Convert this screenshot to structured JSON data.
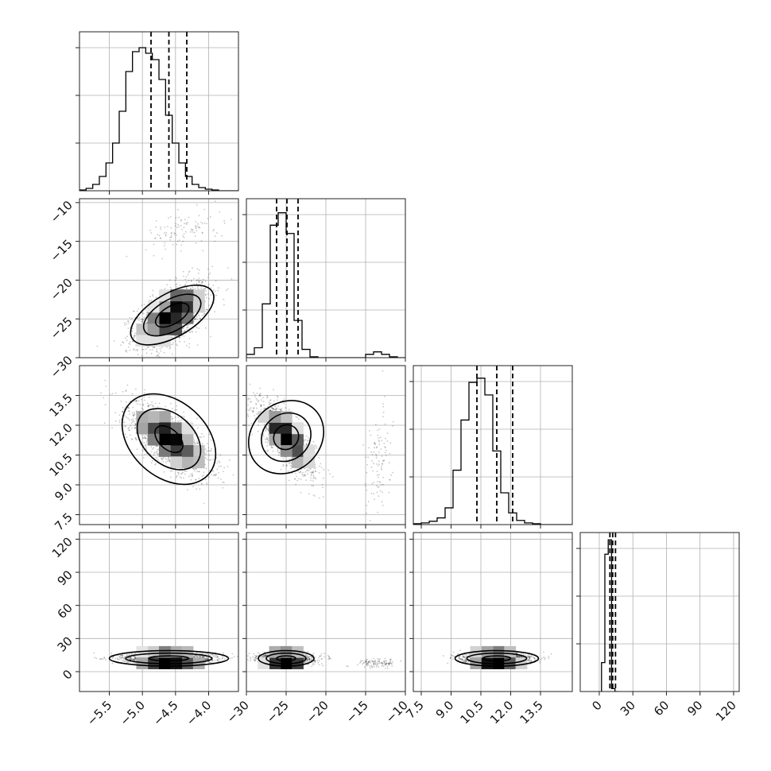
{
  "chart_data": {
    "type": "corner",
    "grid": true,
    "parameters": [
      {
        "range": [
          -5.95,
          -3.55
        ],
        "ticks": [
          "−5.5",
          "−5.0",
          "−4.5",
          "−4.0"
        ],
        "tick_values": [
          -5.5,
          -5.0,
          -4.5,
          -4.0
        ],
        "quantiles": [
          -4.87,
          -4.6,
          -4.33
        ],
        "hist": {
          "bin_width": 0.1,
          "start": -5.95,
          "counts": [
            1,
            3,
            8,
            18,
            35,
            60,
            100,
            150,
            175,
            180,
            173,
            165,
            140,
            95,
            60,
            35,
            18,
            8,
            4,
            2,
            1,
            0,
            0,
            0
          ],
          "ylim": [
            0,
            200
          ]
        }
      },
      {
        "range": [
          -30,
          -10
        ],
        "ticks": [
          "−30",
          "−25",
          "−20",
          "−15",
          "−10"
        ],
        "tick_values": [
          -30,
          -25,
          -20,
          -15,
          -10
        ],
        "quantiles": [
          -26.2,
          -24.9,
          -23.5
        ],
        "hist": {
          "bin_width": 1,
          "start": -30,
          "counts": [
            4,
            12,
            65,
            160,
            175,
            150,
            45,
            10,
            1,
            0,
            0,
            0,
            0,
            0,
            0,
            4,
            7,
            4,
            1,
            0
          ],
          "ylim": [
            0,
            192
          ]
        }
      },
      {
        "range": [
          7.1,
          15.1
        ],
        "ticks": [
          "7.5",
          "9.0",
          "10.5",
          "12.0",
          "13.5"
        ],
        "tick_values": [
          7.5,
          9.0,
          10.5,
          12.0,
          13.5
        ],
        "quantiles": [
          10.3,
          11.3,
          12.1
        ],
        "hist": {
          "bin_width": 0.4,
          "start": 7.1,
          "counts": [
            1,
            2,
            4,
            8,
            20,
            65,
            125,
            170,
            175,
            155,
            88,
            38,
            14,
            5,
            2,
            1,
            0,
            0,
            0,
            0
          ],
          "ylim": [
            0,
            190
          ]
        }
      },
      {
        "range": [
          -17,
          125
        ],
        "ticks": [
          "0",
          "30",
          "60",
          "90",
          "120"
        ],
        "tick_values": [
          0,
          30,
          60,
          90,
          120
        ],
        "quantiles": [
          9.5,
          12.0,
          14.5
        ],
        "hist": {
          "bin_width": 3,
          "start": 2,
          "counts": [
            40,
            190,
            210,
            4,
            0
          ],
          "ylim": [
            0,
            220
          ]
        }
      }
    ],
    "y_axes": [
      null,
      {
        "range": [
          -30,
          -9.5
        ],
        "ticks": [
          "−10",
          "−15",
          "−20",
          "−25",
          "−30"
        ],
        "tick_values": [
          -10,
          -15,
          -20,
          -25,
          -30
        ]
      },
      {
        "range": [
          7,
          15
        ],
        "ticks": [
          "13.5",
          "12.0",
          "10.5",
          "9.0",
          "7.5"
        ],
        "tick_values": [
          13.5,
          12.0,
          10.5,
          9.0,
          7.5
        ]
      },
      {
        "range": [
          -18,
          126
        ],
        "ticks": [
          "120",
          "90",
          "60",
          "30",
          "0"
        ],
        "tick_values": [
          120,
          90,
          60,
          30,
          0
        ]
      }
    ],
    "pairs": [
      {
        "row": 1,
        "col": 0,
        "clusters": [
          {
            "cx": -4.55,
            "cy": -24.5,
            "sx": 0.28,
            "sy": 2.2,
            "rho": 0.55,
            "n": 1500
          },
          {
            "cx": -4.35,
            "cy": -13.5,
            "sx": 0.3,
            "sy": 1.3,
            "rho": 0.3,
            "n": 110
          }
        ],
        "contours": [
          {
            "cx": -4.55,
            "cy": -24.5,
            "rx": 0.7,
            "ry": 2.8,
            "rot": 30
          },
          {
            "cx": -4.55,
            "cy": -24.5,
            "rx": 0.48,
            "ry": 2.0,
            "rot": 30
          },
          {
            "cx": -4.55,
            "cy": -24.5,
            "rx": 0.28,
            "ry": 1.15,
            "rot": 30
          }
        ]
      },
      {
        "row": 2,
        "col": 0,
        "clusters": [
          {
            "cx": -4.6,
            "cy": 11.3,
            "sx": 0.32,
            "sy": 0.9,
            "rho": -0.7,
            "n": 1500
          }
        ],
        "contours": [
          {
            "cx": -4.6,
            "cy": 11.3,
            "rx": 0.8,
            "ry": 1.9,
            "rot": -42
          },
          {
            "cx": -4.6,
            "cy": 11.3,
            "rx": 0.55,
            "ry": 1.25,
            "rot": -42
          },
          {
            "cx": -4.6,
            "cy": 11.3,
            "rx": 0.25,
            "ry": 0.5,
            "rot": -42
          }
        ]
      },
      {
        "row": 2,
        "col": 1,
        "clusters": [
          {
            "cx": -25.0,
            "cy": 11.4,
            "sx": 1.8,
            "sy": 0.9,
            "rho": -0.75,
            "n": 1400
          },
          {
            "cx": -13.5,
            "cy": 10.0,
            "sx": 0.9,
            "sy": 1.4,
            "rho": 0.2,
            "n": 110
          }
        ],
        "contours": [
          {
            "cx": -25.0,
            "cy": 11.4,
            "rx": 4.3,
            "ry": 2.0,
            "rot": -50
          },
          {
            "cx": -25.0,
            "cy": 11.4,
            "rx": 2.9,
            "ry": 1.3,
            "rot": -50
          },
          {
            "cx": -25.0,
            "cy": 11.4,
            "rx": 1.5,
            "ry": 0.65,
            "rot": -50
          }
        ]
      },
      {
        "row": 3,
        "col": 0,
        "clusters": [
          {
            "cx": -4.6,
            "cy": 12.0,
            "sx": 0.35,
            "sy": 2.3,
            "rho": 0.0,
            "n": 1500
          }
        ],
        "contours": [
          {
            "cx": -4.6,
            "cy": 12.0,
            "rx": 0.9,
            "ry": 7.0,
            "rot": 0
          },
          {
            "cx": -4.6,
            "cy": 12.0,
            "rx": 0.65,
            "ry": 4.8,
            "rot": 0
          },
          {
            "cx": -4.6,
            "cy": 12.0,
            "rx": 0.3,
            "ry": 2.3,
            "rot": 0
          }
        ]
      },
      {
        "row": 3,
        "col": 1,
        "clusters": [
          {
            "cx": -25.0,
            "cy": 12.0,
            "sx": 1.7,
            "sy": 2.3,
            "rho": 0.0,
            "n": 1400
          },
          {
            "cx": -13.5,
            "cy": 8.0,
            "sx": 1.2,
            "sy": 2.0,
            "rho": 0.0,
            "n": 110
          }
        ],
        "contours": [
          {
            "cx": -25.0,
            "cy": 12.0,
            "rx": 3.5,
            "ry": 7.0,
            "rot": 0
          },
          {
            "cx": -25.0,
            "cy": 12.0,
            "rx": 2.5,
            "ry": 4.8,
            "rot": 0
          },
          {
            "cx": -25.0,
            "cy": 12.0,
            "rx": 1.2,
            "ry": 2.3,
            "rot": 0
          }
        ]
      },
      {
        "row": 3,
        "col": 2,
        "clusters": [
          {
            "cx": 11.3,
            "cy": 12.0,
            "sx": 0.85,
            "sy": 2.3,
            "rho": 0.0,
            "n": 1500
          }
        ],
        "contours": [
          {
            "cx": 11.3,
            "cy": 12.0,
            "rx": 2.1,
            "ry": 7.0,
            "rot": 0
          },
          {
            "cx": 11.3,
            "cy": 12.0,
            "rx": 1.5,
            "ry": 4.8,
            "rot": 0
          },
          {
            "cx": 11.3,
            "cy": 12.0,
            "rx": 0.7,
            "ry": 2.3,
            "rot": 0
          }
        ]
      }
    ]
  }
}
